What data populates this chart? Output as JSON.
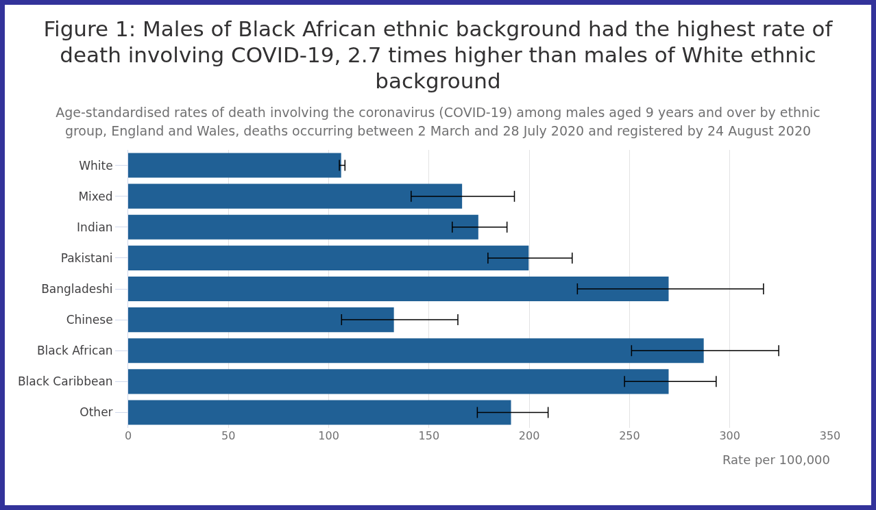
{
  "chart_data": {
    "type": "bar",
    "orientation": "horizontal",
    "title": "Figure 1: Males of Black African ethnic background had the highest rate of death involving COVID-19, 2.7 times higher than males of White ethnic background",
    "subtitle": "Age-standardised rates of death involving the coronavirus (COVID-19) among males aged 9 years and over by ethnic group, England and Wales, deaths occurring between 2 March and 28 July 2020 and registered by 24 August 2020",
    "xlabel": "Rate per 100,000",
    "categories": [
      "White",
      "Mixed",
      "Indian",
      "Pakistani",
      "Bangladeshi",
      "Chinese",
      "Black African",
      "Black Caribbean",
      "Other"
    ],
    "values": [
      106.2,
      166.5,
      174.6,
      199.7,
      269.5,
      132.5,
      287.0,
      269.5,
      190.9
    ],
    "errors": [
      [
        105.3,
        108.1
      ],
      [
        141.1,
        192.6
      ],
      [
        161.6,
        188.9
      ],
      [
        179.4,
        221.4
      ],
      [
        224.0,
        316.8
      ],
      [
        106.4,
        164.4
      ],
      [
        251.0,
        324.4
      ],
      [
        247.5,
        293.2
      ],
      [
        174.1,
        209.4
      ]
    ],
    "color": "#206095",
    "xlim": [
      0,
      350
    ],
    "xticks": [
      0,
      50,
      100,
      150,
      200,
      250,
      300,
      350
    ],
    "grid": "x"
  }
}
